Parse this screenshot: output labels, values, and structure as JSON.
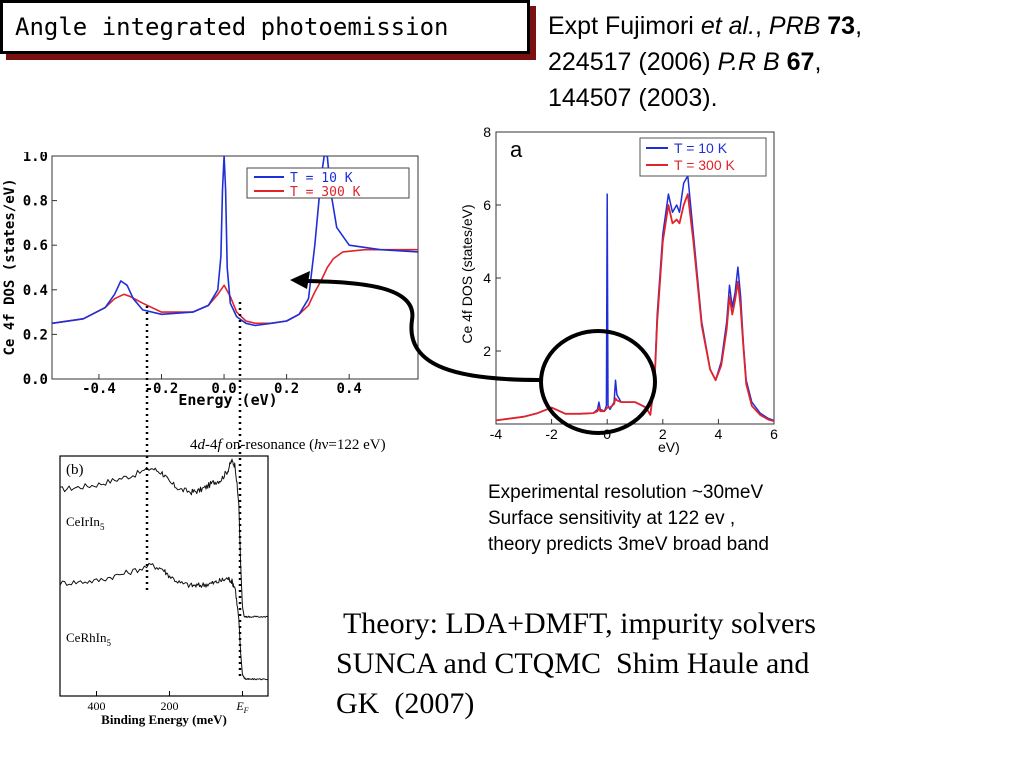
{
  "slide": {
    "title": "Angle integrated photoemission",
    "reference": {
      "line1_pre": "Expt Fujimori ",
      "line1_etal": "et al.",
      "line1_sep": ", ",
      "line1_journal": "PRB",
      "line1_vol": "73",
      "line1_end": ",",
      "line2_pre": "224517 (2006)  ",
      "line2_journal": "P.R B",
      "line2_vol": "67",
      "line2_end": ",",
      "line3": "144507 (2003)."
    },
    "notes": [
      "Experimental resolution ~30meV",
      "Surface sensitivity at 122  ev ,",
      "theory predicts 3meV broad band"
    ],
    "theory": [
      " Theory: LDA+DMFT, impurity solvers",
      "SUNCA and CTQMC  Shim Haule and",
      "GK  (2007)"
    ]
  },
  "chart_data": [
    {
      "type": "line",
      "panel": "zoomed theory DOS",
      "xlabel": "Energy (eV)",
      "ylabel": "Ce 4f DOS (states/eV)",
      "xlim": [
        -0.55,
        0.62
      ],
      "ylim": [
        0,
        1.0
      ],
      "xticks": [
        "-0.4",
        "-0.2",
        "0.0",
        "0.2",
        "0.4"
      ],
      "yticks": [
        "0.0",
        "0.2",
        "0.4",
        "0.6",
        "0.8",
        "1.0"
      ],
      "legend_position": "top-right",
      "series": [
        {
          "name": "T = 10 K",
          "color": "#1f2fd8",
          "x": [
            -0.55,
            -0.45,
            -0.38,
            -0.35,
            -0.33,
            -0.31,
            -0.29,
            -0.26,
            -0.2,
            -0.1,
            -0.05,
            -0.02,
            -0.01,
            -0.005,
            0.0,
            0.005,
            0.01,
            0.02,
            0.04,
            0.07,
            0.1,
            0.15,
            0.2,
            0.24,
            0.27,
            0.29,
            0.31,
            0.32,
            0.33,
            0.34,
            0.36,
            0.4,
            0.5,
            0.62
          ],
          "y": [
            0.25,
            0.27,
            0.32,
            0.38,
            0.44,
            0.42,
            0.36,
            0.31,
            0.29,
            0.3,
            0.33,
            0.4,
            0.55,
            0.85,
            1.0,
            0.85,
            0.5,
            0.34,
            0.28,
            0.25,
            0.24,
            0.25,
            0.26,
            0.29,
            0.36,
            0.6,
            0.9,
            1.0,
            1.0,
            0.85,
            0.68,
            0.6,
            0.58,
            0.57
          ]
        },
        {
          "name": "T = 300 K",
          "color": "#e0242c",
          "x": [
            -0.55,
            -0.45,
            -0.38,
            -0.35,
            -0.32,
            -0.3,
            -0.26,
            -0.2,
            -0.1,
            -0.05,
            -0.02,
            0.0,
            0.02,
            0.04,
            0.07,
            0.1,
            0.15,
            0.2,
            0.24,
            0.27,
            0.29,
            0.31,
            0.33,
            0.35,
            0.38,
            0.45,
            0.55,
            0.62
          ],
          "y": [
            0.25,
            0.27,
            0.32,
            0.36,
            0.38,
            0.37,
            0.34,
            0.3,
            0.3,
            0.33,
            0.38,
            0.42,
            0.37,
            0.3,
            0.26,
            0.25,
            0.25,
            0.26,
            0.29,
            0.33,
            0.39,
            0.44,
            0.5,
            0.54,
            0.57,
            0.58,
            0.58,
            0.58
          ]
        }
      ]
    },
    {
      "type": "line",
      "panel": "a",
      "xlabel": "eV)",
      "ylabel": "Ce 4f DOS (states/eV)",
      "xlim": [
        -4,
        6
      ],
      "ylim": [
        0,
        8
      ],
      "xticks": [
        "-4",
        "-2",
        "0",
        "2",
        "4",
        "6"
      ],
      "yticks": [
        "2",
        "4",
        "6",
        "8"
      ],
      "legend_position": "top-right",
      "series": [
        {
          "name": "T = 10 K",
          "color": "#1f2fd8",
          "x": [
            -4,
            -3,
            -2.5,
            -2.0,
            -1.5,
            -1.0,
            -0.5,
            -0.35,
            -0.3,
            -0.25,
            -0.1,
            -0.03,
            0,
            0.03,
            0.1,
            0.25,
            0.3,
            0.35,
            0.5,
            1.0,
            1.4,
            1.55,
            1.7,
            1.8,
            2.0,
            2.2,
            2.35,
            2.5,
            2.6,
            2.75,
            2.9,
            3.1,
            3.4,
            3.7,
            3.9,
            4.1,
            4.3,
            4.4,
            4.5,
            4.6,
            4.7,
            4.8,
            4.9,
            5.0,
            5.2,
            5.5,
            5.8,
            6
          ],
          "y": [
            0.1,
            0.2,
            0.3,
            0.45,
            0.28,
            0.28,
            0.3,
            0.4,
            0.6,
            0.4,
            0.35,
            0.5,
            6.3,
            0.5,
            0.4,
            0.6,
            1.2,
            0.8,
            0.6,
            0.6,
            0.45,
            0.25,
            1.2,
            3.0,
            5.2,
            6.3,
            5.8,
            6.0,
            5.8,
            6.6,
            6.8,
            5.2,
            2.8,
            1.5,
            1.2,
            1.7,
            2.8,
            3.8,
            3.2,
            3.6,
            4.3,
            3.5,
            2.2,
            1.2,
            0.6,
            0.3,
            0.15,
            0.1
          ]
        },
        {
          "name": "T = 300 K",
          "color": "#e0242c",
          "x": [
            -4,
            -3,
            -2.5,
            -2.0,
            -1.5,
            -1.0,
            -0.5,
            -0.35,
            -0.3,
            -0.25,
            -0.1,
            0,
            0.1,
            0.25,
            0.3,
            0.35,
            0.5,
            1.0,
            1.4,
            1.55,
            1.7,
            1.8,
            2.0,
            2.2,
            2.35,
            2.5,
            2.6,
            2.75,
            2.9,
            3.1,
            3.4,
            3.7,
            3.9,
            4.1,
            4.3,
            4.4,
            4.5,
            4.6,
            4.7,
            4.8,
            4.9,
            5.0,
            5.2,
            5.5,
            5.8,
            6
          ],
          "y": [
            0.1,
            0.2,
            0.3,
            0.45,
            0.28,
            0.28,
            0.3,
            0.35,
            0.45,
            0.35,
            0.35,
            0.45,
            0.45,
            0.55,
            0.7,
            0.65,
            0.6,
            0.6,
            0.45,
            0.25,
            1.1,
            2.8,
            5.0,
            6.0,
            5.5,
            5.6,
            5.5,
            6.0,
            6.3,
            5.0,
            2.7,
            1.5,
            1.2,
            1.6,
            2.6,
            3.5,
            3.0,
            3.4,
            3.9,
            3.2,
            2.1,
            1.1,
            0.5,
            0.25,
            0.12,
            0.08
          ]
        }
      ]
    },
    {
      "type": "line",
      "panel": "(b)",
      "title": "4d-4f on-resonance (hν=122 eV)",
      "title_parts": {
        "a": "4",
        "b": "d",
        "c": "-4",
        "d": "f",
        "e": " on-resonance (",
        "f": "h",
        "g": "ν=122 eV)"
      },
      "xlabel": "Binding Energy (meV)",
      "xticks": [
        "400",
        "200",
        "E"
      ],
      "ef_subscript": "F",
      "xlim": [
        500,
        -70
      ],
      "series": [
        {
          "name": "CeIrIn5",
          "label_base": "CeIrIn",
          "label_sub": "5",
          "x": [
            500,
            450,
            400,
            350,
            300,
            250,
            220,
            200,
            170,
            140,
            120,
            100,
            80,
            60,
            40,
            30,
            20,
            10,
            5,
            0,
            -5,
            -10,
            -20,
            -40,
            -70
          ],
          "y": [
            0.86,
            0.87,
            0.88,
            0.9,
            0.92,
            0.95,
            0.93,
            0.89,
            0.86,
            0.85,
            0.855,
            0.87,
            0.89,
            0.9,
            0.94,
            0.98,
            0.96,
            0.8,
            0.55,
            0.37,
            0.33,
            0.33,
            0.33,
            0.33,
            0.33
          ]
        },
        {
          "name": "CeRhIn5",
          "label_base": "CeRhIn",
          "label_sub": "5",
          "x": [
            500,
            450,
            400,
            350,
            300,
            250,
            220,
            200,
            170,
            140,
            120,
            100,
            80,
            60,
            40,
            30,
            20,
            10,
            5,
            0,
            -5,
            -10,
            -20,
            -40,
            -70
          ],
          "y": [
            0.47,
            0.475,
            0.48,
            0.5,
            0.52,
            0.545,
            0.53,
            0.5,
            0.47,
            0.46,
            0.46,
            0.465,
            0.47,
            0.48,
            0.49,
            0.48,
            0.45,
            0.32,
            0.18,
            0.09,
            0.075,
            0.07,
            0.07,
            0.07,
            0.07
          ]
        }
      ]
    }
  ]
}
